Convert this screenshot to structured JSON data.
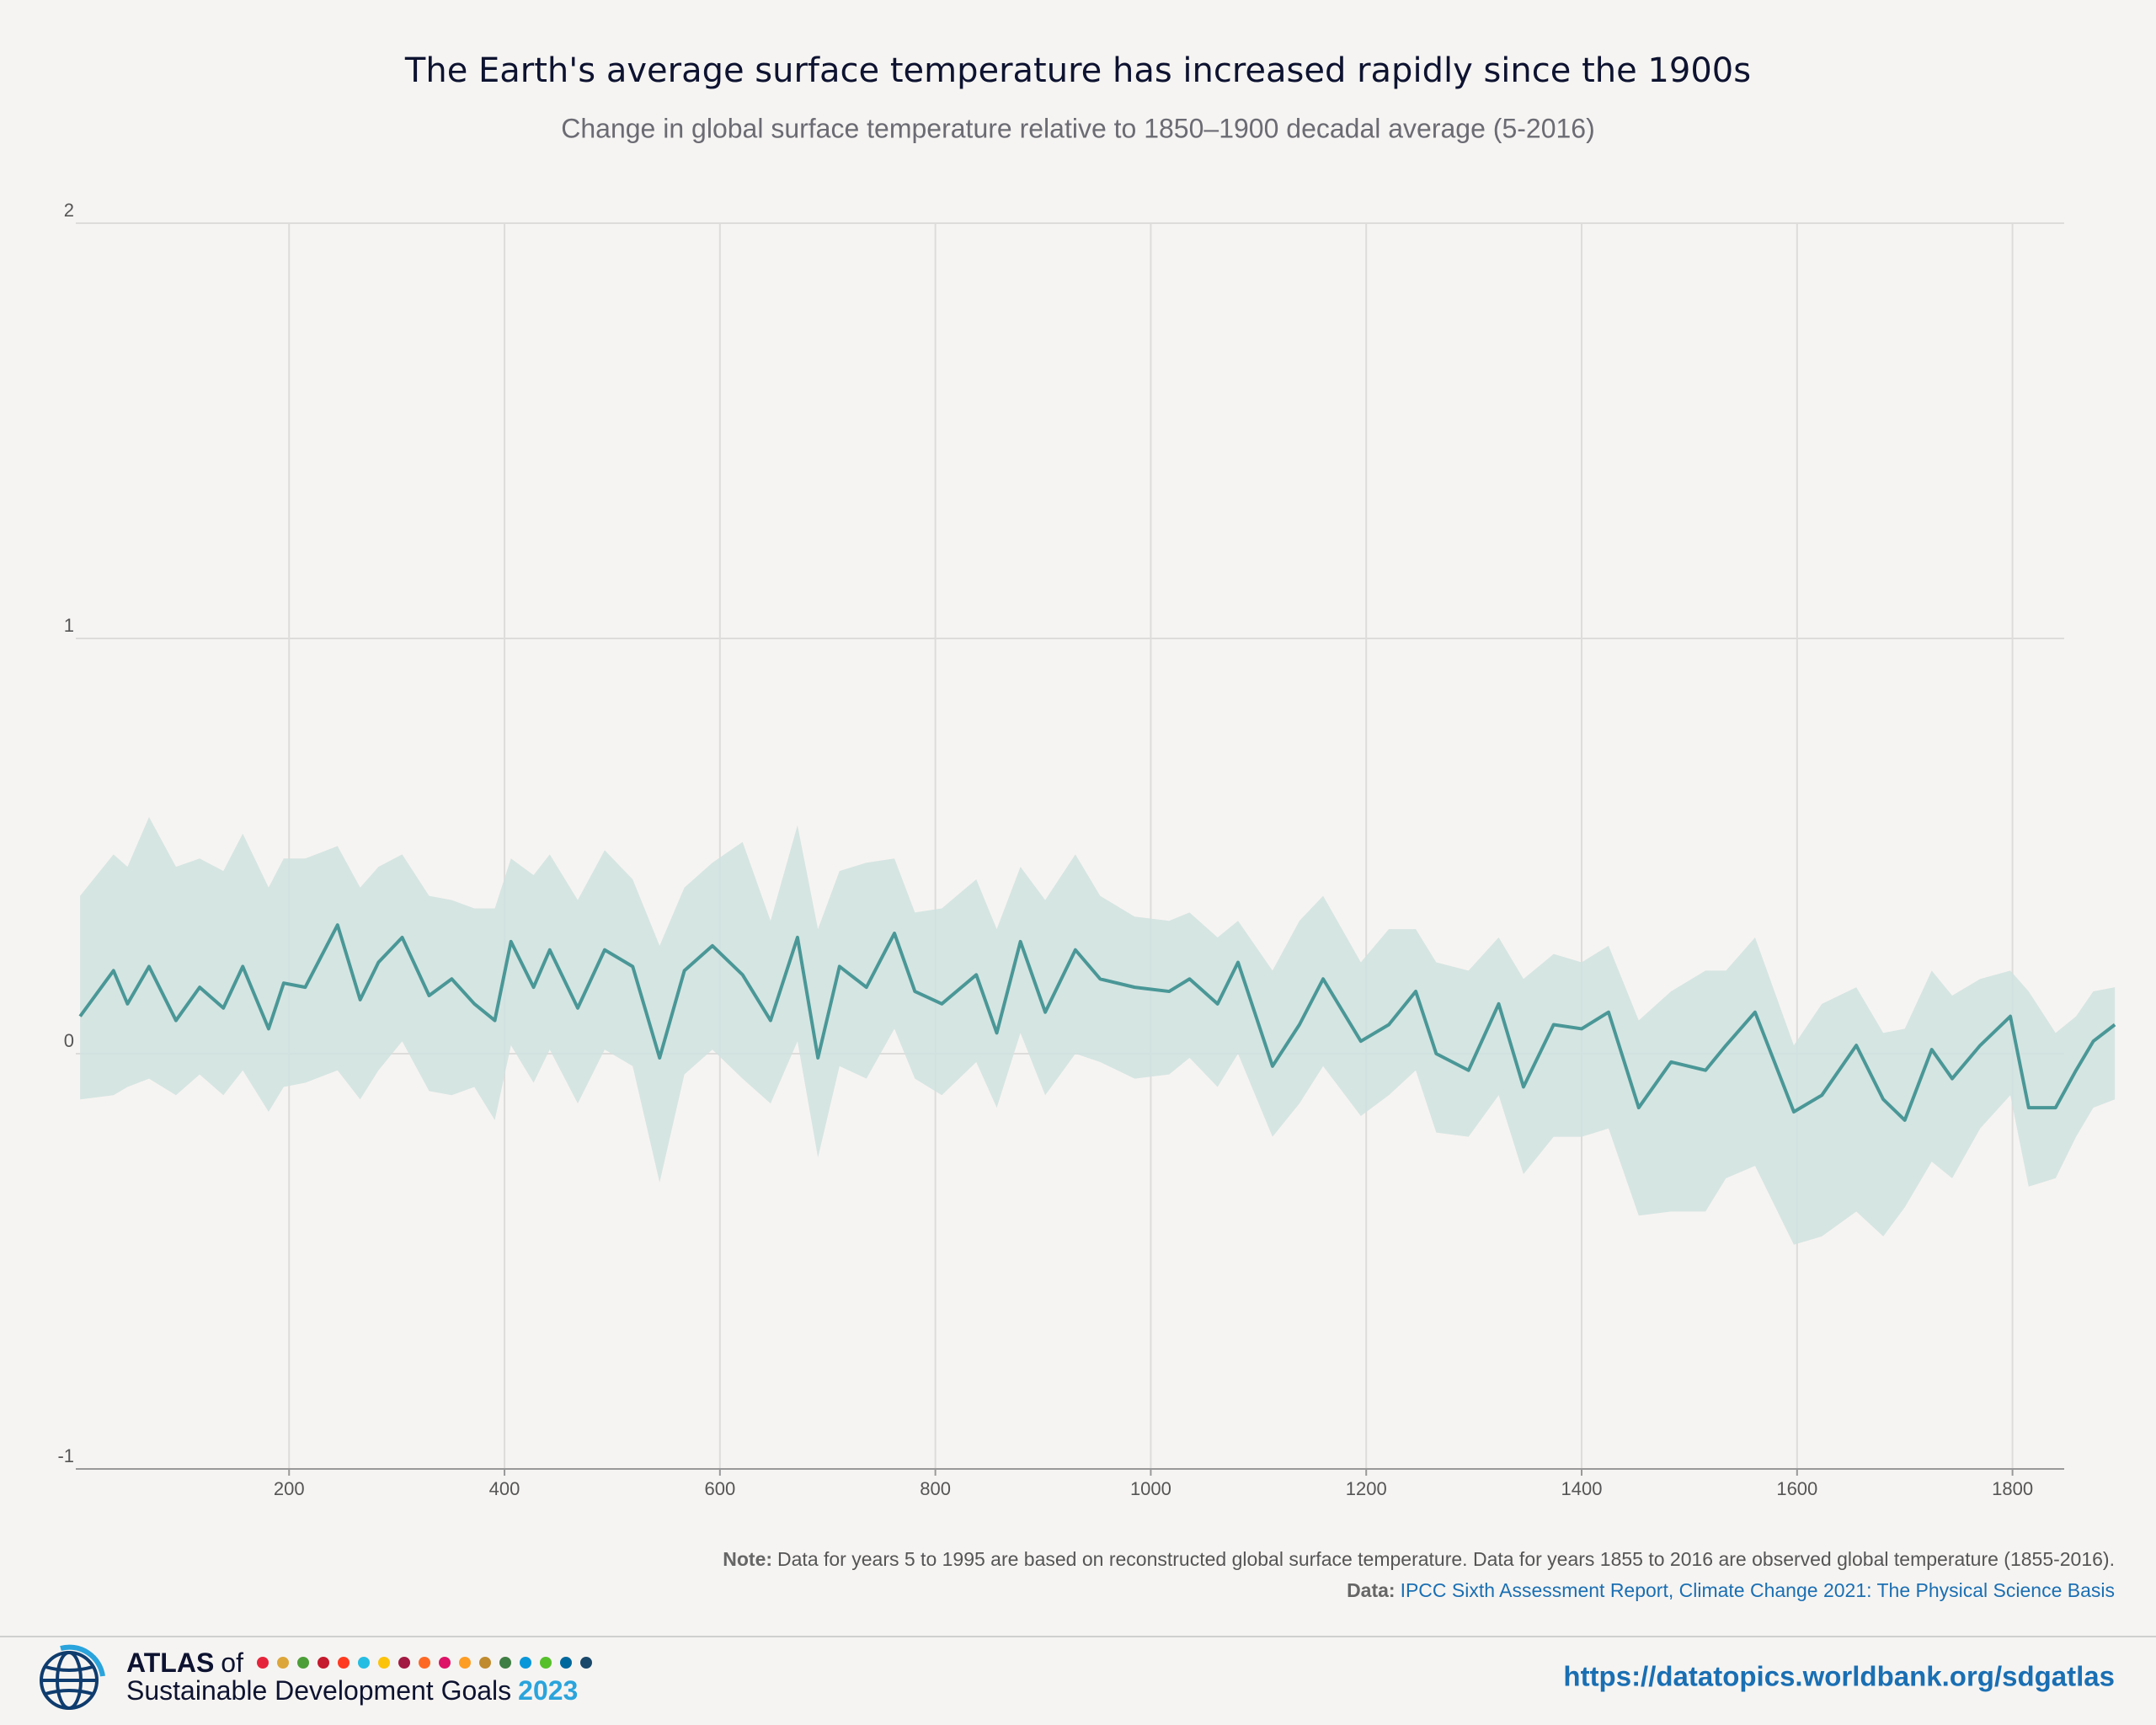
{
  "chart_data": {
    "type": "line",
    "title": "The Earth's average surface temperature has increased rapidly since the 1900s",
    "subtitle": "Change in global surface temperature relative to 1850–1900 decadal average (5-2016)",
    "x": [
      6,
      37,
      50,
      70,
      95,
      117,
      139,
      157,
      181,
      195,
      215,
      245,
      266,
      283,
      305,
      330,
      351,
      372,
      391,
      406,
      427,
      442,
      468,
      493,
      519,
      544,
      567,
      593,
      621,
      647,
      672,
      691,
      711,
      736,
      762,
      781,
      806,
      838,
      857,
      879,
      902,
      930,
      953,
      985,
      1017,
      1036,
      1062,
      1081,
      1113,
      1138,
      1160,
      1195,
      1221,
      1246,
      1265,
      1295,
      1323,
      1346,
      1374,
      1400,
      1425,
      1453,
      1483,
      1515,
      1534,
      1561,
      1597,
      1623,
      1655,
      1680,
      1700,
      1725,
      1744,
      1770,
      1798,
      1815,
      1840,
      1859,
      1875,
      1895
    ],
    "series": [
      {
        "color": "#4a9797",
        "values": [
          0.09,
          0.2,
          0.12,
          0.21,
          0.08,
          0.16,
          0.11,
          0.21,
          0.06,
          0.17,
          0.16,
          0.31,
          0.13,
          0.22,
          0.28,
          0.14,
          0.18,
          0.12,
          0.08,
          0.27,
          0.16,
          0.25,
          0.11,
          0.25,
          0.21,
          -0.01,
          0.2,
          0.26,
          0.19,
          0.08,
          0.28,
          -0.01,
          0.21,
          0.16,
          0.29,
          0.15,
          0.12,
          0.19,
          0.05,
          0.27,
          0.1,
          0.25,
          0.18,
          0.16,
          0.15,
          0.18,
          0.12,
          0.22,
          -0.03,
          0.07,
          0.18,
          0.03,
          0.07,
          0.15,
          0.0,
          -0.04,
          0.12,
          -0.08,
          0.07,
          0.06,
          0.1,
          -0.13,
          -0.02,
          -0.04,
          0.02,
          0.1,
          -0.14,
          -0.1,
          0.02,
          -0.11,
          -0.16,
          0.01,
          -0.06,
          0.02,
          0.09,
          -0.13,
          -0.13,
          -0.04,
          0.03,
          0.07
        ]
      }
    ],
    "band": {
      "color": "#cfe2df",
      "upper": [
        0.38,
        0.48,
        0.45,
        0.57,
        0.45,
        0.47,
        0.44,
        0.53,
        0.4,
        0.47,
        0.47,
        0.5,
        0.4,
        0.45,
        0.48,
        0.38,
        0.37,
        0.35,
        0.35,
        0.47,
        0.43,
        0.48,
        0.37,
        0.49,
        0.42,
        0.26,
        0.4,
        0.46,
        0.51,
        0.32,
        0.55,
        0.3,
        0.44,
        0.46,
        0.47,
        0.34,
        0.35,
        0.42,
        0.3,
        0.45,
        0.37,
        0.48,
        0.38,
        0.33,
        0.32,
        0.34,
        0.28,
        0.32,
        0.2,
        0.32,
        0.38,
        0.22,
        0.3,
        0.3,
        0.22,
        0.2,
        0.28,
        0.18,
        0.24,
        0.22,
        0.26,
        0.08,
        0.15,
        0.2,
        0.2,
        0.28,
        0.02,
        0.12,
        0.16,
        0.05,
        0.06,
        0.2,
        0.14,
        0.18,
        0.2,
        0.15,
        0.05,
        0.09,
        0.15,
        0.16
      ],
      "lower": [
        -0.11,
        -0.1,
        -0.08,
        -0.06,
        -0.1,
        -0.05,
        -0.1,
        -0.04,
        -0.14,
        -0.08,
        -0.07,
        -0.04,
        -0.11,
        -0.04,
        0.03,
        -0.09,
        -0.1,
        -0.08,
        -0.16,
        0.02,
        -0.07,
        0.01,
        -0.12,
        0.01,
        -0.03,
        -0.31,
        -0.05,
        0.01,
        -0.06,
        -0.12,
        0.03,
        -0.25,
        -0.03,
        -0.06,
        0.06,
        -0.06,
        -0.1,
        -0.02,
        -0.13,
        0.05,
        -0.1,
        0.0,
        -0.02,
        -0.06,
        -0.05,
        -0.01,
        -0.08,
        0.0,
        -0.2,
        -0.12,
        -0.03,
        -0.15,
        -0.1,
        -0.04,
        -0.19,
        -0.2,
        -0.1,
        -0.29,
        -0.2,
        -0.2,
        -0.18,
        -0.39,
        -0.38,
        -0.38,
        -0.3,
        -0.27,
        -0.46,
        -0.44,
        -0.38,
        -0.44,
        -0.37,
        -0.26,
        -0.3,
        -0.18,
        -0.1,
        -0.32,
        -0.3,
        -0.2,
        -0.13,
        -0.11
      ]
    },
    "xlim": [
      2,
      1848
    ],
    "ylim": [
      -1,
      2
    ],
    "xticks": [
      200,
      400,
      600,
      800,
      1000,
      1200,
      1400,
      1600,
      1800
    ],
    "yticks": [
      -1,
      0,
      1,
      2
    ],
    "grid": true,
    "note": {
      "label": "Note:",
      "text": "Data for years 5 to 1995 are based on reconstructed global surface temperature. Data for years 1855 to 2016 are observed global temperature (1855-2016)."
    },
    "source": {
      "label": "Data:",
      "text": "IPCC Sixth Assessment Report, Climate Change 2021: The Physical Science Basis"
    }
  },
  "footer": {
    "atlas": "ATLAS",
    "of": "of",
    "name": "Sustainable Development Goals",
    "year": "2023",
    "url": "https://datatopics.worldbank.org/sdgatlas"
  }
}
